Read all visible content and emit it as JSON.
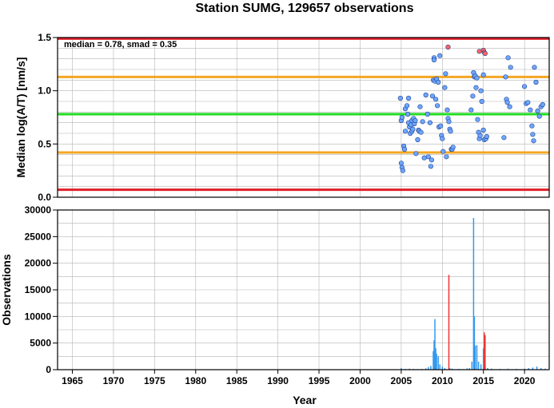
{
  "chart_data": [
    {
      "type": "scatter",
      "title": "Station SUMG, 129657 observations",
      "ylabel": "Median log(A/T) [nm/s]",
      "annotation": "median = 0.78, smad = 0.35",
      "xlim": [
        1963.2,
        2023.0
      ],
      "ylim": [
        0.0,
        1.5
      ],
      "yticks": [
        "0.0",
        "0.5",
        "1.0",
        "1.5"
      ],
      "xticks": [
        1965,
        1970,
        1975,
        1980,
        1985,
        1990,
        1995,
        2000,
        2005,
        2010,
        2015,
        2020
      ],
      "grid": true,
      "reference_lines": [
        {
          "y": 0.07,
          "color": "#e0202a"
        },
        {
          "y": 0.42,
          "color": "#f5a623"
        },
        {
          "y": 0.78,
          "color": "#22dd22"
        },
        {
          "y": 1.13,
          "color": "#f5a623"
        },
        {
          "y": 1.49,
          "color": "#e0202a"
        }
      ],
      "series": [
        {
          "color": "#6ea6ff",
          "points": [
            [
              2004.9,
              0.93
            ],
            [
              2005.0,
              0.72
            ],
            [
              2005.1,
              0.75
            ],
            [
              2005.0,
              0.32
            ],
            [
              2005.1,
              0.28
            ],
            [
              2005.2,
              0.25
            ],
            [
              2005.3,
              0.48
            ],
            [
              2005.4,
              0.45
            ],
            [
              2005.5,
              0.62
            ],
            [
              2005.5,
              0.83
            ],
            [
              2005.7,
              0.86
            ],
            [
              2005.8,
              0.78
            ],
            [
              2005.9,
              0.7
            ],
            [
              2005.9,
              0.93
            ],
            [
              2006.0,
              0.66
            ],
            [
              2006.1,
              0.6
            ],
            [
              2006.2,
              0.68
            ],
            [
              2006.3,
              0.62
            ],
            [
              2006.3,
              0.72
            ],
            [
              2006.4,
              0.64
            ],
            [
              2006.5,
              0.74
            ],
            [
              2006.6,
              0.69
            ],
            [
              2006.7,
              0.72
            ],
            [
              2006.8,
              0.41
            ],
            [
              2007.0,
              0.54
            ],
            [
              2007.1,
              0.63
            ],
            [
              2007.2,
              0.62
            ],
            [
              2007.3,
              0.85
            ],
            [
              2007.4,
              0.61
            ],
            [
              2007.6,
              0.71
            ],
            [
              2007.8,
              0.37
            ],
            [
              2008.0,
              0.96
            ],
            [
              2008.2,
              0.78
            ],
            [
              2008.3,
              0.38
            ],
            [
              2008.5,
              0.7
            ],
            [
              2008.6,
              0.29
            ],
            [
              2008.7,
              0.35
            ],
            [
              2008.8,
              0.95
            ],
            [
              2008.9,
              1.1
            ],
            [
              2009.0,
              1.31
            ],
            [
              2009.0,
              1.29
            ],
            [
              2009.1,
              1.09
            ],
            [
              2009.2,
              0.92
            ],
            [
              2009.3,
              1.11
            ],
            [
              2009.4,
              0.86
            ],
            [
              2009.5,
              1.08
            ],
            [
              2009.6,
              0.66
            ],
            [
              2009.7,
              1.33
            ],
            [
              2009.8,
              0.67
            ],
            [
              2009.9,
              0.58
            ],
            [
              2010.0,
              0.55
            ],
            [
              2010.1,
              0.43
            ],
            [
              2010.3,
              1.03
            ],
            [
              2010.4,
              1.16
            ],
            [
              2010.5,
              0.38
            ],
            [
              2010.6,
              0.82
            ],
            [
              2010.7,
              0.74
            ],
            [
              2010.8,
              0.71
            ],
            [
              2010.9,
              0.64
            ],
            [
              2011.0,
              0.62
            ],
            [
              2011.1,
              0.45
            ],
            [
              2011.2,
              0.45
            ],
            [
              2011.3,
              0.47
            ],
            [
              2013.5,
              0.82
            ],
            [
              2013.7,
              0.95
            ],
            [
              2013.8,
              1.17
            ],
            [
              2013.9,
              1.13
            ],
            [
              2014.0,
              1.14
            ],
            [
              2014.1,
              1.03
            ],
            [
              2014.2,
              1.12
            ],
            [
              2014.3,
              0.73
            ],
            [
              2014.4,
              0.61
            ],
            [
              2014.5,
              0.55
            ],
            [
              2014.6,
              0.58
            ],
            [
              2014.7,
              1.0
            ],
            [
              2014.8,
              0.9
            ],
            [
              2015.0,
              1.15
            ],
            [
              2015.0,
              0.63
            ],
            [
              2015.1,
              0.54
            ],
            [
              2015.3,
              0.55
            ],
            [
              2015.4,
              0.57
            ],
            [
              2017.5,
              0.56
            ],
            [
              2017.7,
              1.13
            ],
            [
              2017.8,
              0.92
            ],
            [
              2017.9,
              0.89
            ],
            [
              2018.0,
              1.31
            ],
            [
              2018.2,
              0.85
            ],
            [
              2018.3,
              1.22
            ],
            [
              2020.0,
              1.04
            ],
            [
              2020.2,
              0.88
            ],
            [
              2020.4,
              0.89
            ],
            [
              2020.7,
              0.82
            ],
            [
              2020.9,
              0.67
            ],
            [
              2021.0,
              0.59
            ],
            [
              2021.1,
              0.53
            ],
            [
              2021.2,
              1.22
            ],
            [
              2021.4,
              1.08
            ],
            [
              2021.6,
              0.81
            ],
            [
              2021.8,
              0.76
            ],
            [
              2022.0,
              0.85
            ],
            [
              2022.2,
              0.87
            ]
          ]
        },
        {
          "color": "#ff6464",
          "points": [
            [
              2010.7,
              1.41
            ],
            [
              2014.5,
              1.37
            ],
            [
              2015.0,
              1.38
            ],
            [
              2015.1,
              1.36
            ],
            [
              2015.2,
              1.35
            ]
          ]
        }
      ]
    },
    {
      "type": "bar",
      "ylabel": "Observations",
      "xlabel": "Year",
      "xlim": [
        1963.2,
        2023.0
      ],
      "ylim": [
        0,
        30000
      ],
      "yticks": [
        "0",
        "5000",
        "10000",
        "15000",
        "20000",
        "25000",
        "30000"
      ],
      "xticks": [
        1965,
        1970,
        1975,
        1980,
        1985,
        1990,
        1995,
        2000,
        2005,
        2010,
        2015,
        2020
      ],
      "grid": true,
      "series": [
        {
          "color": "#3399ee",
          "bars": [
            [
              2005.0,
              300
            ],
            [
              2005.5,
              150
            ],
            [
              2006.0,
              200
            ],
            [
              2006.5,
              150
            ],
            [
              2007.0,
              100
            ],
            [
              2007.5,
              150
            ],
            [
              2008.0,
              250
            ],
            [
              2008.3,
              500
            ],
            [
              2008.6,
              700
            ],
            [
              2008.9,
              3500
            ],
            [
              2009.0,
              5500
            ],
            [
              2009.1,
              9500
            ],
            [
              2009.2,
              4000
            ],
            [
              2009.3,
              3000
            ],
            [
              2009.5,
              2500
            ],
            [
              2009.7,
              1000
            ],
            [
              2010.0,
              600
            ],
            [
              2010.3,
              300
            ],
            [
              2010.9,
              300
            ],
            [
              2011.2,
              200
            ],
            [
              2012.0,
              150
            ],
            [
              2012.5,
              100
            ],
            [
              2013.0,
              250
            ],
            [
              2013.3,
              300
            ],
            [
              2013.6,
              1500
            ],
            [
              2013.8,
              28500
            ],
            [
              2013.9,
              10000
            ],
            [
              2014.0,
              4500
            ],
            [
              2014.2,
              4600
            ],
            [
              2014.4,
              1500
            ],
            [
              2014.7,
              1000
            ],
            [
              2015.0,
              4000
            ],
            [
              2015.2,
              800
            ],
            [
              2015.5,
              300
            ],
            [
              2016.0,
              200
            ],
            [
              2017.0,
              150
            ],
            [
              2018.0,
              200
            ],
            [
              2019.0,
              150
            ],
            [
              2020.0,
              200
            ],
            [
              2020.5,
              300
            ],
            [
              2021.0,
              400
            ],
            [
              2021.5,
              600
            ],
            [
              2022.0,
              300
            ],
            [
              2022.5,
              200
            ]
          ]
        },
        {
          "color": "#ee3333",
          "bars": [
            [
              2010.8,
              17800
            ],
            [
              2015.1,
              7000
            ],
            [
              2015.2,
              6500
            ]
          ]
        }
      ]
    }
  ]
}
